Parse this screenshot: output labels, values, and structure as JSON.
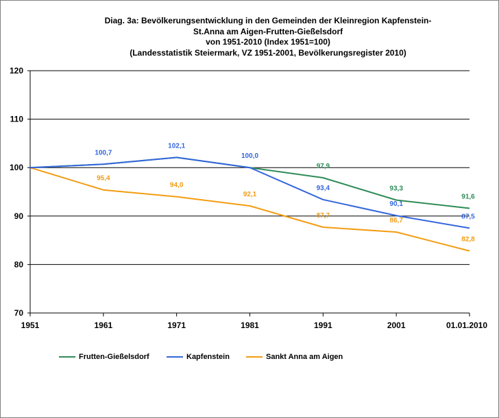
{
  "chart_data": {
    "type": "line",
    "title_lines": [
      "Diag. 3a: Bevölkerungsentwicklung  in den Gemeinden  der Kleinregion Kapfenstein-",
      "St.Anna am Aigen-Frutten-Gießelsdorf",
      "von 1951-2010  (Index 1951=100)",
      "(Landesstatistik  Steiermark,  VZ 1951-2001,  Bevölkerungsregister  2010)"
    ],
    "categories": [
      "1951",
      "1961",
      "1971",
      "1981",
      "1991",
      "2001",
      "01.01.2010"
    ],
    "ylim": [
      70,
      120
    ],
    "yticks": [
      "70",
      "80",
      "90",
      "100",
      "110",
      "120"
    ],
    "ytick_values": [
      70,
      80,
      90,
      100,
      110,
      120
    ],
    "grid": true,
    "legend_position": "bottom",
    "series": [
      {
        "name": "Frutten-Gießelsdorf",
        "color": "#2e8b57",
        "values": [
          100,
          100.7,
          102.1,
          100.0,
          97.9,
          93.3,
          91.6
        ],
        "labels": [
          "",
          "",
          "",
          "",
          "97,9",
          "93,3",
          "91,6"
        ]
      },
      {
        "name": "Kapfenstein",
        "color": "#3366dd",
        "values": [
          100,
          100.7,
          102.1,
          100.0,
          93.4,
          90.1,
          87.5
        ],
        "labels": [
          "",
          "100,7",
          "102,1",
          "100,0",
          "93,4",
          "90,1",
          "87,5"
        ]
      },
      {
        "name": "Sankt Anna am Aigen",
        "color": "#f39c12",
        "values": [
          100,
          95.4,
          94.0,
          92.1,
          87.7,
          86.7,
          82.8
        ],
        "labels": [
          "",
          "95,4",
          "94,0",
          "92,1",
          "87,7",
          "86,7",
          "82,8"
        ]
      }
    ]
  }
}
